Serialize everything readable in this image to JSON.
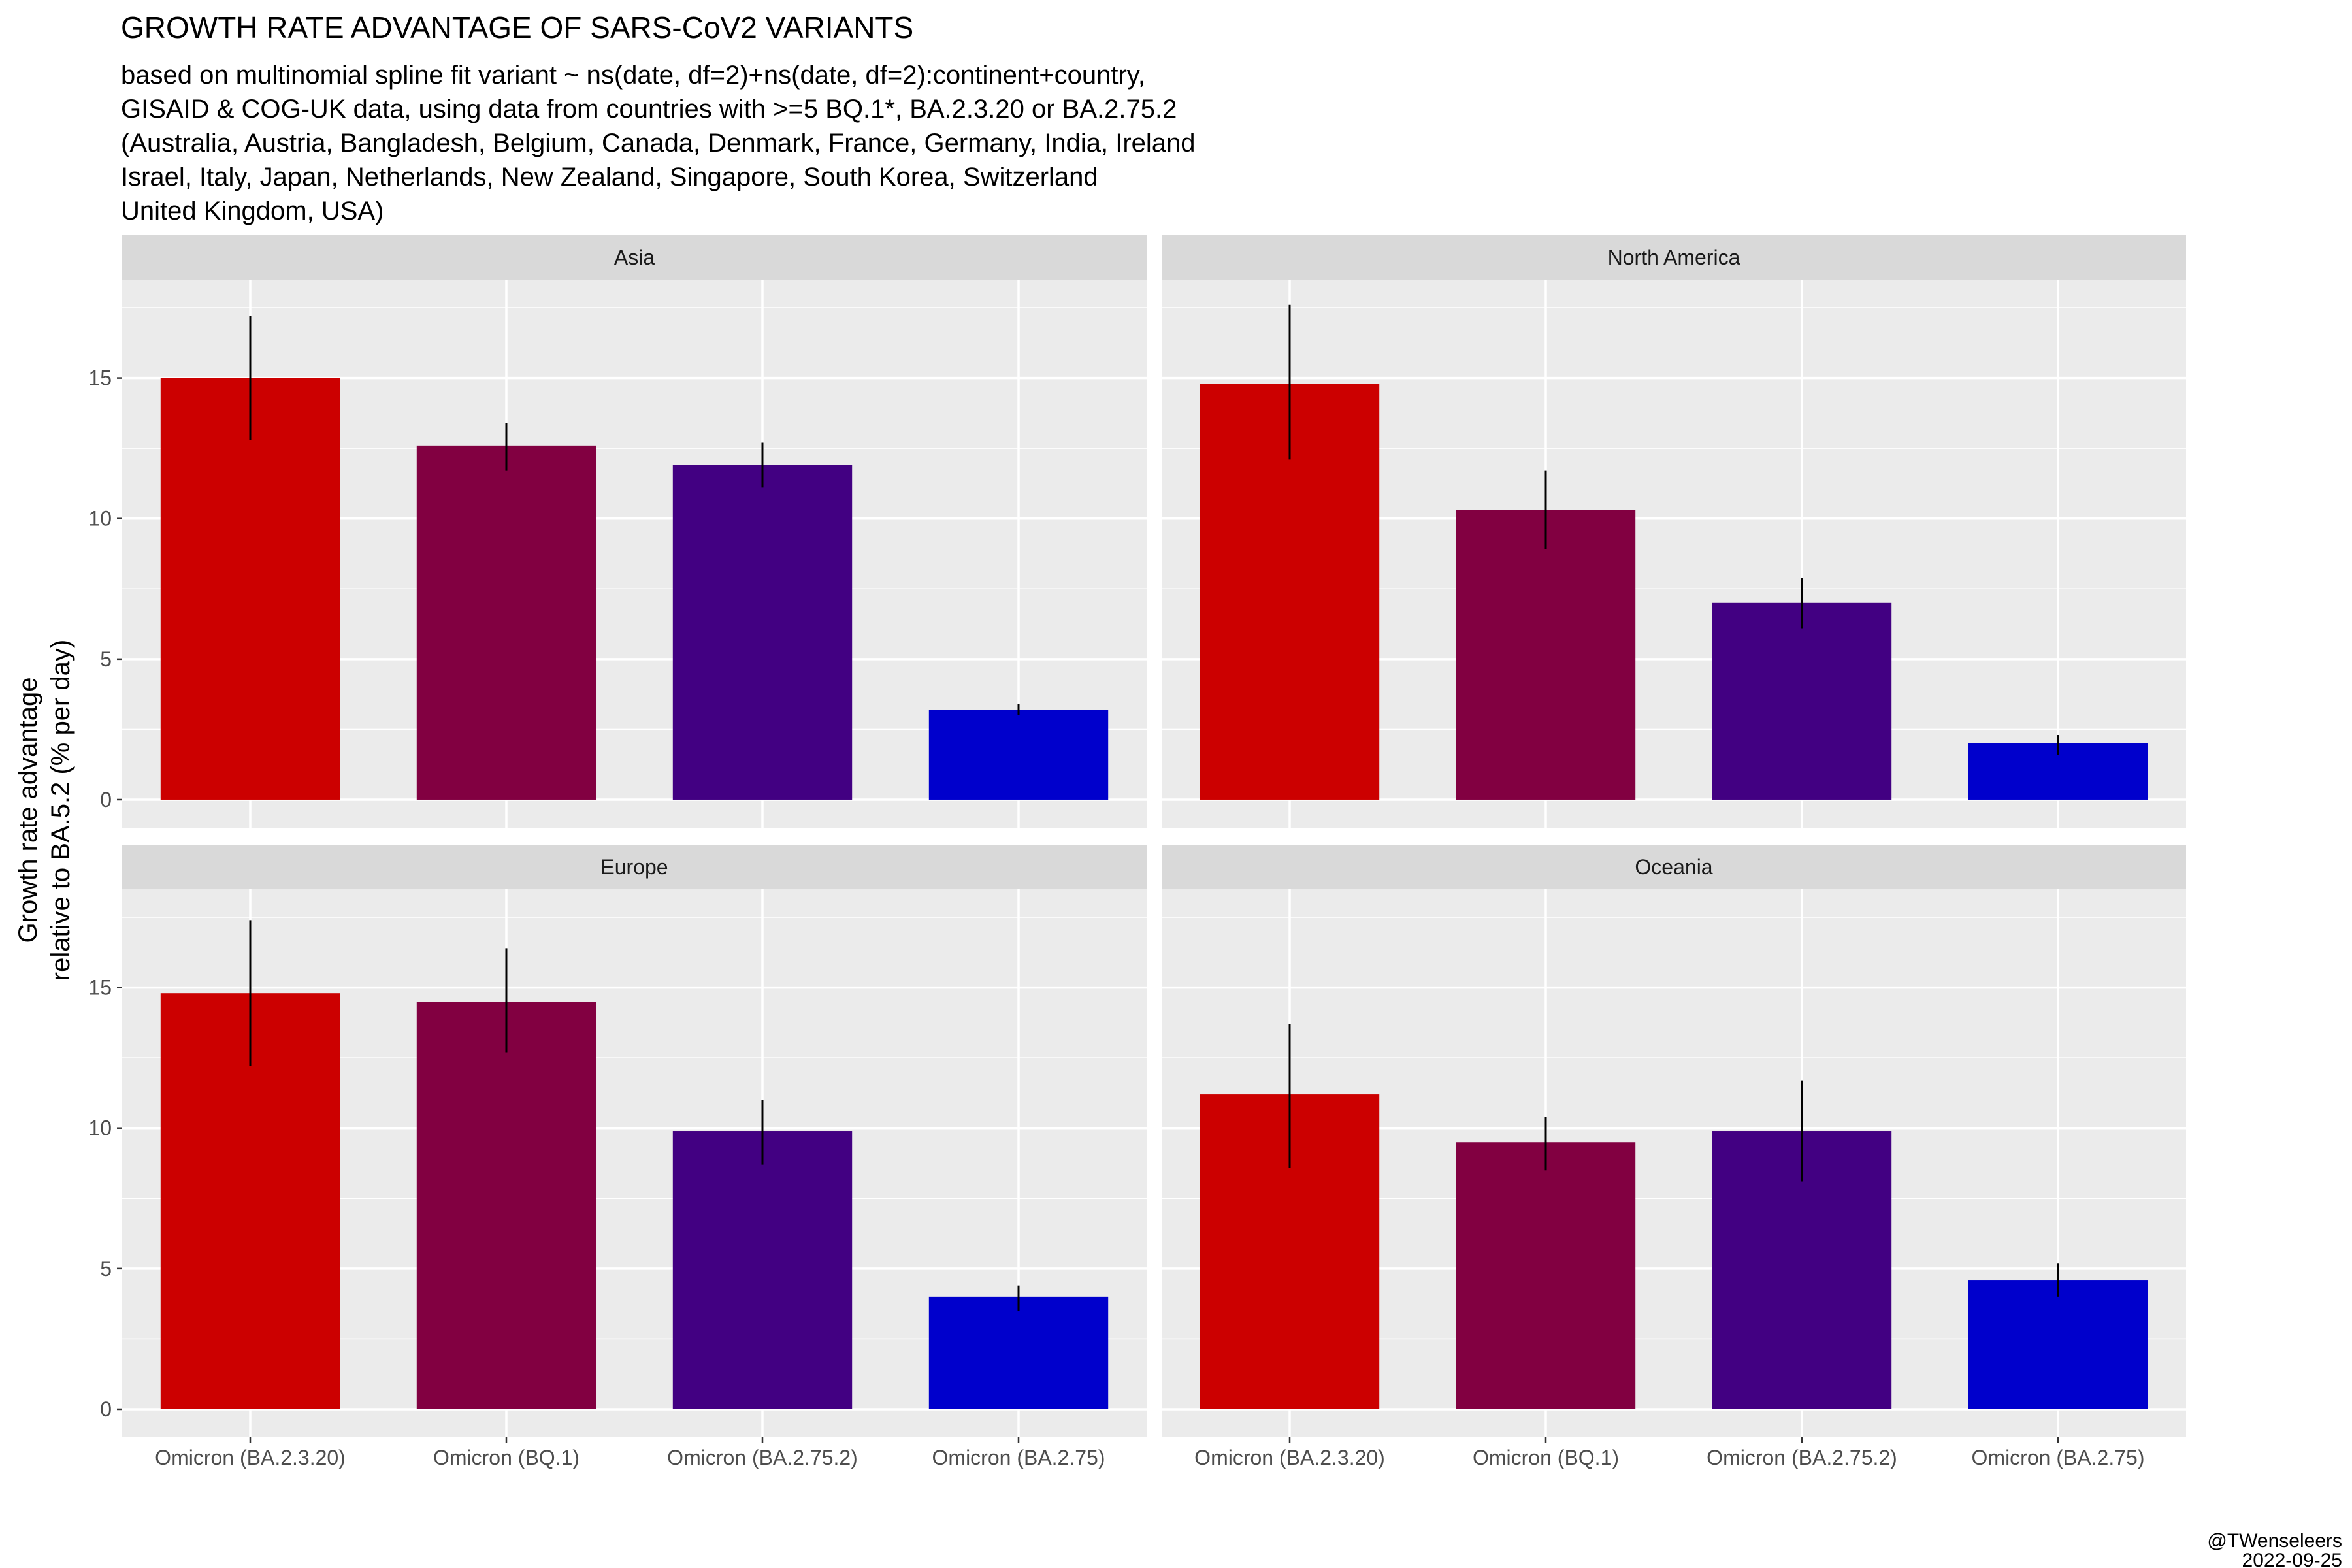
{
  "title": "GROWTH RATE ADVANTAGE OF SARS-CoV2 VARIANTS",
  "subtitle_lines": [
    "based on multinomial spline fit variant ~ ns(date, df=2)+ns(date, df=2):continent+country,",
    "GISAID & COG-UK data, using data from countries with >=5 BQ.1*, BA.2.3.20 or BA.2.75.2",
    "(Australia, Austria, Bangladesh, Belgium, Canada, Denmark, France, Germany, India, Ireland",
    "Israel, Italy, Japan, Netherlands, New Zealand, Singapore, South Korea, Switzerland",
    "United Kingdom, USA)"
  ],
  "caption": {
    "author": "@TWenseleers",
    "date": "2022-09-25"
  },
  "colors": {
    "panel_bg": "#ebebeb",
    "strip_bg": "#d9d9d9",
    "grid": "#ffffff",
    "Omicron (BA.2.3.20)": "#cc0000",
    "Omicron (BQ.1)": "#820041",
    "Omicron (BA.2.75.2)": "#420082",
    "Omicron (BA.2.75)": "#0000cc"
  },
  "chart_data": {
    "type": "bar",
    "facet_layout": "2x2",
    "ylabel_lines": [
      "Growth rate advantage",
      "relative to BA.5.2 (% per day)"
    ],
    "xlabel": "",
    "ylim": [
      -1,
      18.5
    ],
    "yticks": [
      0,
      5,
      10,
      15
    ],
    "categories": [
      "Omicron (BA.2.3.20)",
      "Omicron (BQ.1)",
      "Omicron (BA.2.75.2)",
      "Omicron (BA.2.75)"
    ],
    "grid": true,
    "panels": [
      {
        "name": "Asia",
        "values": [
          15.0,
          12.6,
          11.9,
          3.2
        ],
        "lower": [
          12.8,
          11.7,
          11.1,
          3.0
        ],
        "upper": [
          17.2,
          13.4,
          12.7,
          3.4
        ]
      },
      {
        "name": "North America",
        "values": [
          14.8,
          10.3,
          7.0,
          2.0
        ],
        "lower": [
          12.1,
          8.9,
          6.1,
          1.6
        ],
        "upper": [
          17.6,
          11.7,
          7.9,
          2.3
        ]
      },
      {
        "name": "Europe",
        "values": [
          14.8,
          14.5,
          9.9,
          4.0
        ],
        "lower": [
          12.2,
          12.7,
          8.7,
          3.5
        ],
        "upper": [
          17.4,
          16.4,
          11.0,
          4.4
        ]
      },
      {
        "name": "Oceania",
        "values": [
          11.2,
          9.5,
          9.9,
          4.6
        ],
        "lower": [
          8.6,
          8.5,
          8.1,
          4.0
        ],
        "upper": [
          13.7,
          10.4,
          11.7,
          5.2
        ]
      }
    ]
  }
}
